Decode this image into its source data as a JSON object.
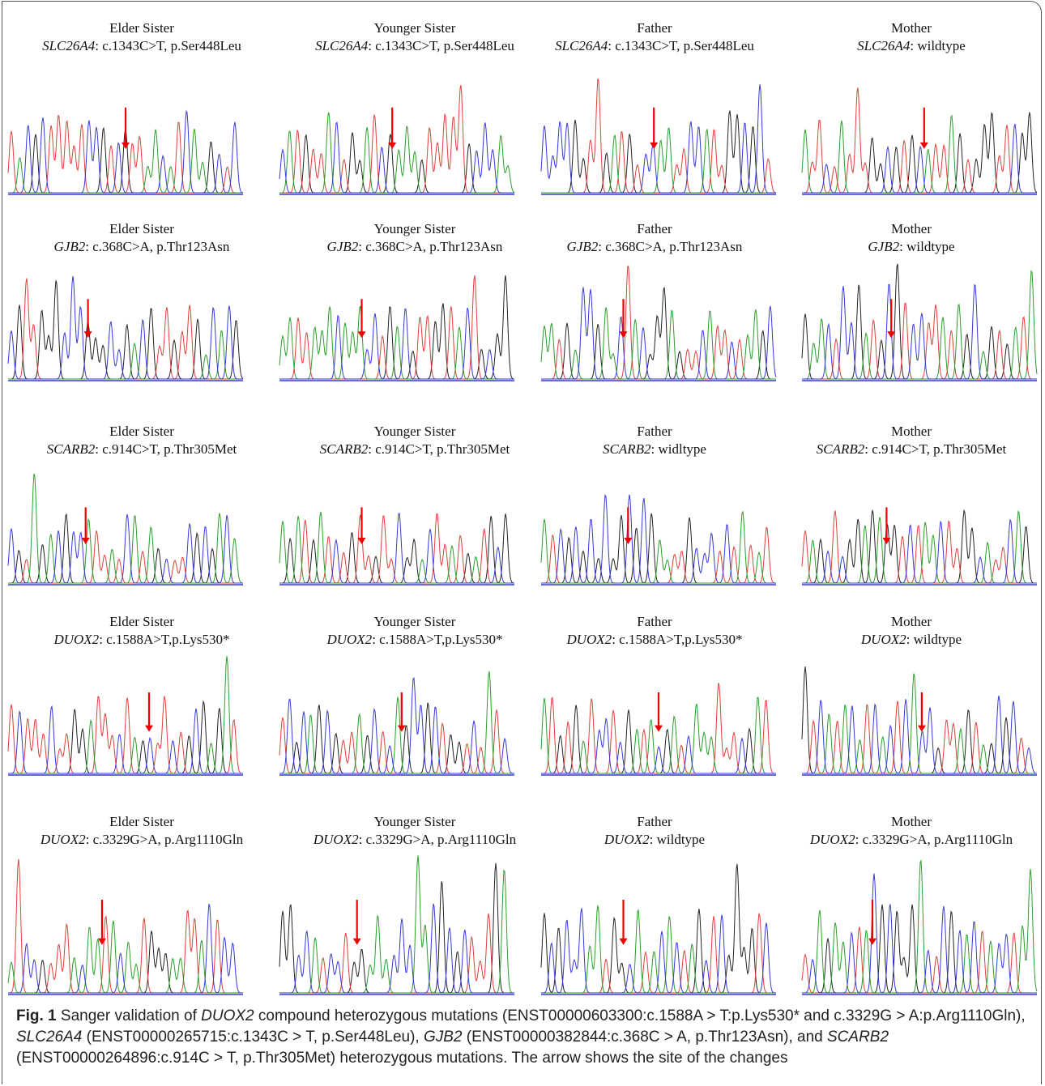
{
  "panels": [
    [
      {
        "person": "Elder Sister",
        "gene": "SLC26A4",
        "variant": ": c.1343C>T, p.Ser448Leu"
      },
      {
        "person": "Younger Sister",
        "gene": "SLC26A4",
        "variant": ": c.1343C>T, p.Ser448Leu"
      },
      {
        "person": "Father",
        "gene": "SLC26A4",
        "variant": ": c.1343C>T, p.Ser448Leu"
      },
      {
        "person": "Mother",
        "gene": "SLC26A4",
        "variant": ": wildtype"
      }
    ],
    [
      {
        "person": "Elder Sister",
        "gene": "GJB2",
        "variant": ": c.368C>A, p.Thr123Asn"
      },
      {
        "person": "Younger Sister",
        "gene": "GJB2",
        "variant": ": c.368C>A, p.Thr123Asn"
      },
      {
        "person": "Father",
        "gene": "GJB2",
        "variant": ": c.368C>A, p.Thr123Asn"
      },
      {
        "person": "Mother",
        "gene": "GJB2",
        "variant": ": wildtype"
      }
    ],
    [
      {
        "person": "Elder Sister",
        "gene": "SCARB2",
        "variant": ": c.914C>T, p.Thr305Met"
      },
      {
        "person": "Younger Sister",
        "gene": "SCARB2",
        "variant": ": c.914C>T, p.Thr305Met"
      },
      {
        "person": "Father",
        "gene": "SCARB2",
        "variant": ": widltype"
      },
      {
        "person": "Mother",
        "gene": "SCARB2",
        "variant": ": c.914C>T, p.Thr305Met"
      }
    ],
    [
      {
        "person": "Elder Sister",
        "gene": "DUOX2",
        "variant": ": c.1588A>T,p.Lys530*"
      },
      {
        "person": "Younger Sister",
        "gene": "DUOX2",
        "variant": ": c.1588A>T,p.Lys530*"
      },
      {
        "person": "Father",
        "gene": "DUOX2",
        "variant": ": c.1588A>T,p.Lys530*"
      },
      {
        "person": "Mother",
        "gene": "DUOX2",
        "variant": ": wildtype"
      }
    ],
    [
      {
        "person": "Elder Sister",
        "gene": "DUOX2",
        "variant": ": c.3329G>A, p.Arg1110Gln"
      },
      {
        "person": "Younger Sister",
        "gene": "DUOX2",
        "variant": ": c.3329G>A, p.Arg1110Gln"
      },
      {
        "person": "Father",
        "gene": "DUOX2",
        "variant": ": wildtype"
      },
      {
        "person": "Mother",
        "gene": "DUOX2",
        "variant": ": c.3329G>A, p.Arg1110Gln"
      }
    ]
  ],
  "caption": {
    "label": "Fig. 1",
    "segments": [
      " Sanger validation of ",
      "DUOX2",
      " compound heterozygous mutations (ENST00000603300:c.1588A > T:p.Lys530* and c.3329G > A:p.Arg1110Gln), ",
      "SLC26A4",
      " (ENST00000265715:c.1343C > T, p.Ser448Leu), ",
      "GJB2",
      " (ENST00000382844:c.368C > A, p.Thr123Asn), and ",
      "SCARB2",
      " (ENST00000264896:c.914C > T, p.Thr305Met) heterozygous mutations. The arrow shows the site of the changes"
    ]
  }
}
